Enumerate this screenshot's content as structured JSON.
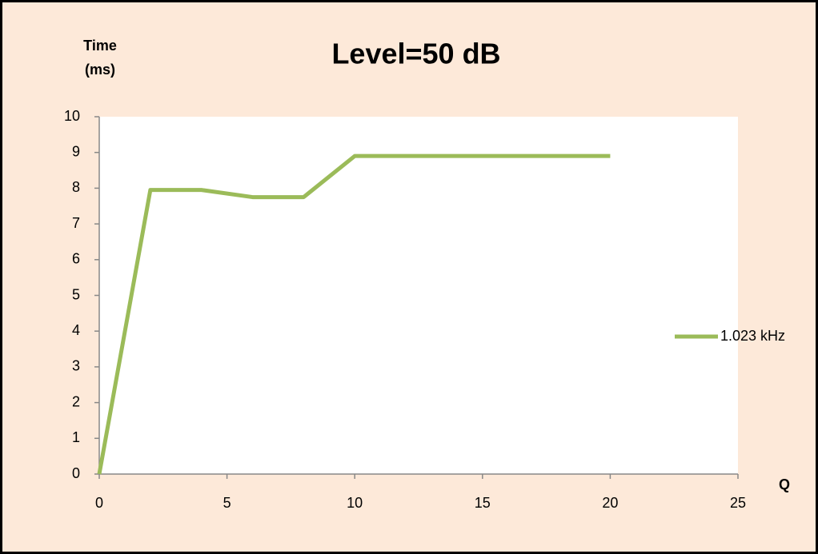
{
  "chart_data": {
    "type": "line",
    "title": "Level=50 dB",
    "y_label": "Time (ms)",
    "x_label": "Q",
    "x": [
      0,
      2,
      4,
      6,
      8,
      10,
      20
    ],
    "series": [
      {
        "name": "1.023 kHz",
        "color": "#9bbb59",
        "values": [
          0,
          7.95,
          7.95,
          7.75,
          7.75,
          8.9,
          8.9
        ]
      }
    ],
    "xlim": [
      0,
      25
    ],
    "xticks": [
      0,
      5,
      10,
      15,
      20,
      25
    ],
    "ylim": [
      0,
      10
    ],
    "yticks": [
      0,
      1,
      2,
      3,
      4,
      5,
      6,
      7,
      8,
      9,
      10
    ],
    "grid": false,
    "legend": "right"
  }
}
